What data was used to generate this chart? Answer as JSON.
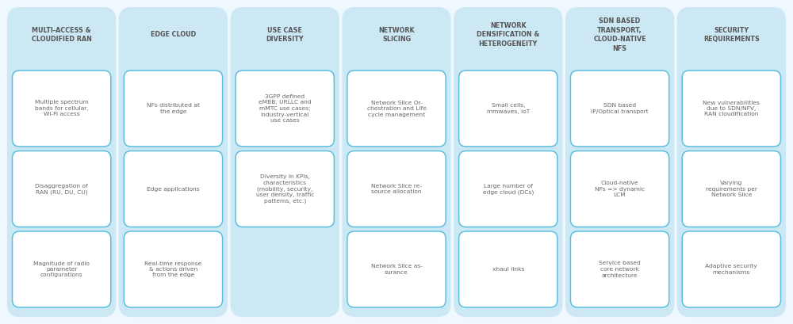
{
  "fig_width": 10.0,
  "fig_height": 4.09,
  "background_color": "#f0f8ff",
  "outer_bg_color": "#cce8f4",
  "inner_bg_color": "#ffffff",
  "inner_border_color": "#5bbfdf",
  "header_text_color": "#555555",
  "body_text_color": "#666666",
  "columns": [
    {
      "header": "MULTI-ACCESS &\nCLOUDIFIED RAN",
      "items": [
        "Multiple spectrum\nbands for cellular,\nWi-Fi access",
        "Disaggregation of\nRAN (RU, DU, CU)",
        "Magnitude of radio\nparameter\nconfigurations"
      ]
    },
    {
      "header": "EDGE CLOUD",
      "items": [
        "NFs distributed at\nthe edge",
        "Edge applications",
        "Real-time response\n& actions driven\nfrom the edge"
      ]
    },
    {
      "header": "USE CASE\nDIVERSITY",
      "items": [
        "3GPP defined\neMBB, URLLC and\nmMTC use cases;\nindustry-vertical\nuse cases",
        "Diversity in KPIs,\ncharacteristics\n(mobility, security,\nuser density, traffic\npatterns, etc.)",
        null
      ]
    },
    {
      "header": "NETWORK\nSLICING",
      "items": [
        "Network Slice Or-\nchestration and Life\ncycle management",
        "Network Slice re-\nsource allocation",
        "Network Slice as-\nsurance"
      ]
    },
    {
      "header": "NETWORK\nDENSIFICATION &\nHETEROGENEITY",
      "items": [
        "Small cells,\nmmwaves, IoT",
        "Large number of\nedge cloud (DCs)",
        "xhaul links"
      ]
    },
    {
      "header": "SDN BASED\nTRANSPORT,\nCLOUD-NATIVE\nNFS",
      "items": [
        "SDN based\nIP/Optical transport",
        "Cloud-native\nNFs => dynamic\nLCM",
        "Service based\ncore network\narchitecture"
      ]
    },
    {
      "header": "SECURITY\nREQUIREMENTS",
      "items": [
        "New vulnerabilities\ndue to SDN/NFV,\nRAN cloudification",
        "Varying\nrequirements per\nNetwork Slice",
        "Adaptive security\nmechanisms"
      ]
    }
  ]
}
